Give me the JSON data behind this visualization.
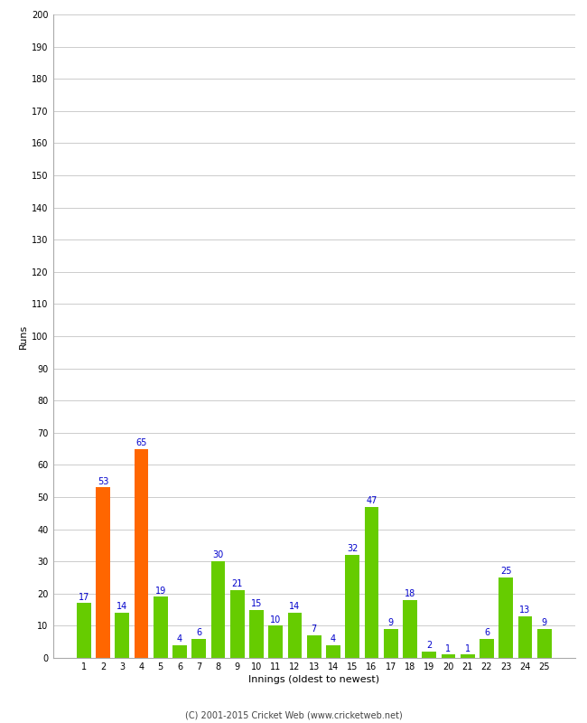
{
  "title": "",
  "xlabel": "Innings (oldest to newest)",
  "ylabel": "Runs",
  "categories": [
    1,
    2,
    3,
    4,
    5,
    6,
    7,
    8,
    9,
    10,
    11,
    12,
    13,
    14,
    15,
    16,
    17,
    18,
    19,
    20,
    21,
    22,
    23,
    24,
    25
  ],
  "values": [
    17,
    53,
    14,
    65,
    19,
    4,
    6,
    30,
    21,
    15,
    10,
    14,
    7,
    4,
    32,
    47,
    9,
    18,
    2,
    1,
    1,
    6,
    25,
    13,
    9
  ],
  "colors": [
    "#66cc00",
    "#ff6600",
    "#66cc00",
    "#ff6600",
    "#66cc00",
    "#66cc00",
    "#66cc00",
    "#66cc00",
    "#66cc00",
    "#66cc00",
    "#66cc00",
    "#66cc00",
    "#66cc00",
    "#66cc00",
    "#66cc00",
    "#66cc00",
    "#66cc00",
    "#66cc00",
    "#66cc00",
    "#66cc00",
    "#66cc00",
    "#66cc00",
    "#66cc00",
    "#66cc00",
    "#66cc00"
  ],
  "ylim": [
    0,
    200
  ],
  "yticks": [
    0,
    10,
    20,
    30,
    40,
    50,
    60,
    70,
    80,
    90,
    100,
    110,
    120,
    130,
    140,
    150,
    160,
    170,
    180,
    190,
    200
  ],
  "label_color": "#0000cc",
  "background_color": "#ffffff",
  "grid_color": "#cccccc",
  "footer": "(C) 2001-2015 Cricket Web (www.cricketweb.net)",
  "axis_label_fontsize": 8,
  "tick_fontsize": 7,
  "bar_label_fontsize": 7,
  "bar_width": 0.75
}
